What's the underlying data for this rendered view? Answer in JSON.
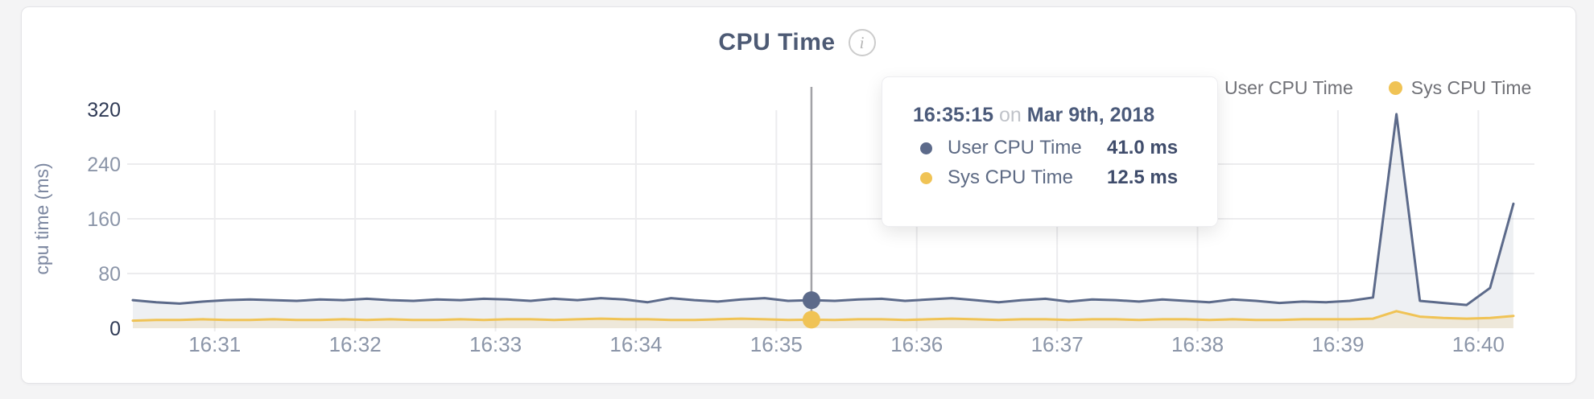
{
  "header": {
    "title": "CPU Time",
    "info_icon_glyph": "i"
  },
  "legend": {
    "items": [
      {
        "label": "User CPU Time",
        "color": "#5c6a8a"
      },
      {
        "label": "Sys CPU Time",
        "color": "#f0c355"
      }
    ]
  },
  "tooltip": {
    "time": "16:35:15",
    "connector": "on",
    "date": "Mar 9th, 2018",
    "rows": [
      {
        "label": "User CPU Time",
        "value": "41.0 ms",
        "color": "#5c6a8a"
      },
      {
        "label": "Sys CPU Time",
        "value": "12.5 ms",
        "color": "#f0c355"
      }
    ]
  },
  "chart_data": {
    "type": "area",
    "title": "CPU Time",
    "xlabel": "",
    "ylabel": "cpu time (ms)",
    "ylim": [
      0,
      320
    ],
    "grid": true,
    "legend_position": "top-right",
    "x_start": "16:30:25",
    "x_interval_seconds": 10,
    "x_ticks": [
      "16:31",
      "16:32",
      "16:33",
      "16:34",
      "16:35",
      "16:36",
      "16:37",
      "16:38",
      "16:39",
      "16:40"
    ],
    "y_ticks": [
      {
        "value": 0,
        "label": "0",
        "strong": true
      },
      {
        "value": 80,
        "label": "80",
        "strong": false
      },
      {
        "value": 160,
        "label": "160",
        "strong": false
      },
      {
        "value": 240,
        "label": "240",
        "strong": false
      },
      {
        "value": 320,
        "label": "320",
        "strong": true
      }
    ],
    "series": [
      {
        "name": "User CPU Time",
        "color": "#5c6a8a",
        "fill": "rgba(90,104,136,0.10)",
        "values": [
          41,
          38,
          36,
          39,
          41,
          42,
          41,
          40,
          42,
          41,
          43,
          41,
          40,
          42,
          41,
          43,
          42,
          40,
          43,
          41,
          44,
          42,
          38,
          44,
          41,
          39,
          42,
          44,
          40,
          41,
          40,
          42,
          43,
          40,
          42,
          44,
          41,
          38,
          41,
          43,
          39,
          42,
          41,
          39,
          42,
          40,
          38,
          42,
          40,
          37,
          39,
          38,
          40,
          45,
          313,
          40,
          37,
          34,
          59,
          182
        ]
      },
      {
        "name": "Sys CPU Time",
        "color": "#f0c355",
        "fill": "rgba(240,195,85,0.16)",
        "values": [
          11,
          12,
          12,
          13,
          12,
          12,
          13,
          12,
          12,
          13,
          12,
          13,
          12,
          12,
          13,
          12,
          13,
          13,
          12,
          13,
          14,
          13,
          13,
          12,
          12,
          13,
          14,
          13,
          12,
          12.5,
          12,
          13,
          13,
          12,
          13,
          14,
          13,
          12,
          13,
          13,
          12,
          13,
          13,
          12,
          13,
          13,
          12,
          13,
          12,
          12,
          13,
          13,
          13,
          14,
          25,
          17,
          15,
          14,
          15,
          18
        ]
      }
    ],
    "hover": {
      "index": 29,
      "time": "16:35:15",
      "values": [
        41.0,
        12.5
      ],
      "line_color": "#a2a2a7"
    },
    "grid_color": "#ececee",
    "tick_color_light": "#8b95a8",
    "tick_color_strong": "#2f3a55",
    "axis_title_color": "#7c87a0"
  }
}
